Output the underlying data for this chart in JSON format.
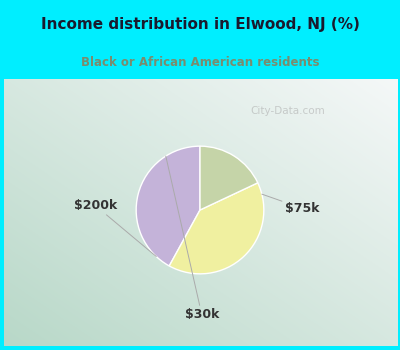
{
  "title": "Income distribution in Elwood, NJ (%)",
  "subtitle": "Black or African American residents",
  "slices": [
    {
      "label": "$75k",
      "value": 42,
      "color": "#c4b3d9"
    },
    {
      "label": "$200k",
      "value": 40,
      "color": "#f0f0a0"
    },
    {
      "label": "$30k",
      "value": 18,
      "color": "#c5d4a8"
    }
  ],
  "startangle": 90,
  "header_bg": "#00eeff",
  "chart_bg_left": "#c8ddd5",
  "chart_bg_right": "#e8f0f8",
  "title_color": "#1a1a2e",
  "subtitle_color": "#7a8c6e",
  "label_color": "#333333",
  "label_fontsize": 9,
  "watermark": "City-Data.com",
  "watermark_color": "#aaaaaa"
}
